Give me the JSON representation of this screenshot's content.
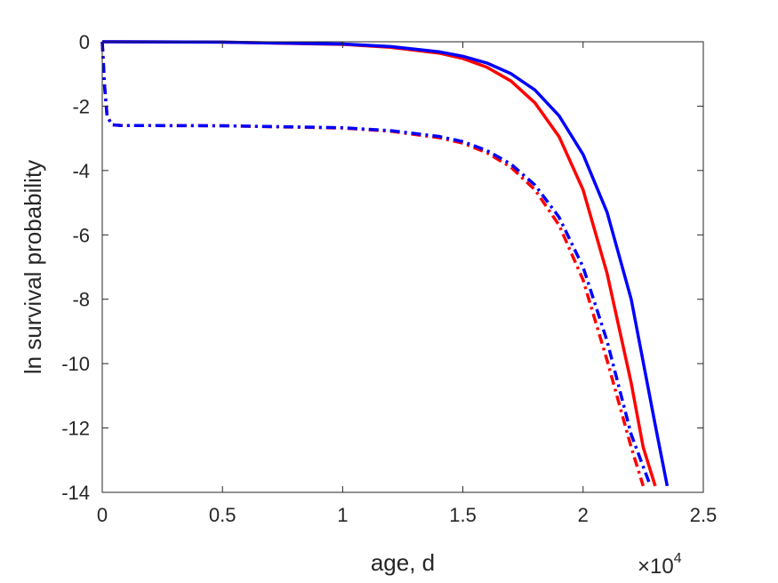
{
  "chart_data": {
    "type": "line",
    "title": "",
    "xlabel": "age, d",
    "ylabel": "ln survival probability",
    "x_multiplier": "×10",
    "x_multiplier_exp": "4",
    "xlim": [
      0,
      2.5
    ],
    "ylim": [
      -14,
      0
    ],
    "x_tick_values": [
      0,
      0.5,
      1,
      1.5,
      2,
      2.5
    ],
    "x_tick_labels": [
      "0",
      "0.5",
      "1",
      "1.5",
      "2",
      "2.5"
    ],
    "y_tick_values": [
      0,
      -2,
      -4,
      -6,
      -8,
      -10,
      -12,
      -14
    ],
    "y_tick_labels": [
      "0",
      "-2",
      "-4",
      "-6",
      "-8",
      "-10",
      "-12",
      "-14"
    ],
    "grid": false,
    "colors": {
      "red": "#ff0000",
      "blue": "#0000ff",
      "axis": "#262626"
    },
    "series": [
      {
        "color": "#ff0000",
        "style": "solid",
        "x": [
          0,
          0.5,
          1.0,
          1.2,
          1.4,
          1.5,
          1.6,
          1.7,
          1.8,
          1.9,
          2.0,
          2.1,
          2.2,
          2.25,
          2.3
        ],
        "y": [
          0,
          -0.01,
          -0.08,
          -0.17,
          -0.35,
          -0.52,
          -0.79,
          -1.22,
          -1.9,
          -2.95,
          -4.6,
          -7.2,
          -10.6,
          -12.6,
          -13.8
        ]
      },
      {
        "color": "#0000ff",
        "style": "solid",
        "x": [
          0,
          0.5,
          1.0,
          1.2,
          1.4,
          1.5,
          1.6,
          1.7,
          1.8,
          1.9,
          2.0,
          2.1,
          2.2,
          2.3,
          2.35
        ],
        "y": [
          0,
          -0.01,
          -0.07,
          -0.15,
          -0.31,
          -0.45,
          -0.66,
          -0.99,
          -1.5,
          -2.3,
          -3.5,
          -5.3,
          -8.0,
          -11.9,
          -13.8
        ]
      },
      {
        "color": "#ff0000",
        "style": "dashdot",
        "x": [
          0.0,
          0.01,
          0.02,
          0.04,
          0.08,
          0.5,
          1.0,
          1.2,
          1.4,
          1.5,
          1.6,
          1.7,
          1.8,
          1.9,
          2.0,
          2.1,
          2.2,
          2.25
        ],
        "y": [
          0,
          -1.4,
          -2.3,
          -2.58,
          -2.6,
          -2.61,
          -2.68,
          -2.78,
          -2.98,
          -3.15,
          -3.45,
          -3.9,
          -4.6,
          -5.7,
          -7.4,
          -9.9,
          -12.6,
          -13.8
        ]
      },
      {
        "color": "#0000ff",
        "style": "dashdot",
        "x": [
          0.0,
          0.01,
          0.02,
          0.04,
          0.08,
          0.5,
          1.0,
          1.2,
          1.4,
          1.5,
          1.6,
          1.7,
          1.8,
          1.9,
          2.0,
          2.1,
          2.2,
          2.28
        ],
        "y": [
          0,
          -1.4,
          -2.3,
          -2.58,
          -2.6,
          -2.61,
          -2.67,
          -2.76,
          -2.94,
          -3.1,
          -3.38,
          -3.8,
          -4.45,
          -5.45,
          -7.0,
          -9.3,
          -12.2,
          -13.8
        ]
      }
    ]
  }
}
